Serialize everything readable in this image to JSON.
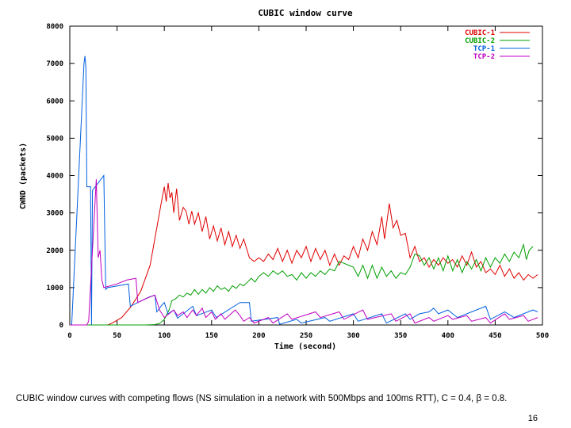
{
  "chart_data": {
    "type": "line",
    "title": "CUBIC window curve",
    "xlabel": "Time (second)",
    "ylabel": "CWND (packets)",
    "xlim": [
      0,
      500
    ],
    "ylim": [
      0,
      8000
    ],
    "x_ticks": [
      0,
      50,
      100,
      150,
      200,
      250,
      300,
      350,
      400,
      450,
      500
    ],
    "y_ticks": [
      0,
      1000,
      2000,
      3000,
      4000,
      5000,
      6000,
      7000,
      8000
    ],
    "grid": false,
    "legend_position": "top-right",
    "series": [
      {
        "name": "CUBIC-1",
        "color": "#e00000",
        "points": [
          [
            0,
            0
          ],
          [
            40,
            0
          ],
          [
            45,
            50
          ],
          [
            55,
            200
          ],
          [
            65,
            500
          ],
          [
            75,
            900
          ],
          [
            85,
            1600
          ],
          [
            92,
            2600
          ],
          [
            97,
            3300
          ],
          [
            100,
            3700
          ],
          [
            102,
            3300
          ],
          [
            104,
            3800
          ],
          [
            106,
            3400
          ],
          [
            108,
            3550
          ],
          [
            110,
            3000
          ],
          [
            113,
            3650
          ],
          [
            116,
            2800
          ],
          [
            120,
            3150
          ],
          [
            123,
            3050
          ],
          [
            126,
            2700
          ],
          [
            129,
            3050
          ],
          [
            132,
            2700
          ],
          [
            136,
            3000
          ],
          [
            140,
            2500
          ],
          [
            144,
            2900
          ],
          [
            148,
            2300
          ],
          [
            152,
            2650
          ],
          [
            156,
            2250
          ],
          [
            160,
            2600
          ],
          [
            164,
            2150
          ],
          [
            168,
            2500
          ],
          [
            172,
            2100
          ],
          [
            176,
            2400
          ],
          [
            180,
            2050
          ],
          [
            184,
            2300
          ],
          [
            190,
            1800
          ],
          [
            195,
            1700
          ],
          [
            200,
            1800
          ],
          [
            205,
            1700
          ],
          [
            210,
            1900
          ],
          [
            215,
            1750
          ],
          [
            220,
            2050
          ],
          [
            225,
            1700
          ],
          [
            230,
            2000
          ],
          [
            235,
            1650
          ],
          [
            240,
            2000
          ],
          [
            245,
            1800
          ],
          [
            250,
            2100
          ],
          [
            255,
            1700
          ],
          [
            260,
            2050
          ],
          [
            265,
            1750
          ],
          [
            270,
            2000
          ],
          [
            275,
            1600
          ],
          [
            280,
            1900
          ],
          [
            285,
            1600
          ],
          [
            290,
            1850
          ],
          [
            295,
            1750
          ],
          [
            300,
            2100
          ],
          [
            305,
            1800
          ],
          [
            310,
            2300
          ],
          [
            315,
            2000
          ],
          [
            320,
            2500
          ],
          [
            325,
            2150
          ],
          [
            330,
            2900
          ],
          [
            333,
            2300
          ],
          [
            338,
            3250
          ],
          [
            342,
            2600
          ],
          [
            346,
            2800
          ],
          [
            350,
            2400
          ],
          [
            355,
            2450
          ],
          [
            360,
            1800
          ],
          [
            365,
            2100
          ],
          [
            370,
            1700
          ],
          [
            375,
            1800
          ],
          [
            380,
            1550
          ],
          [
            385,
            1750
          ],
          [
            390,
            1600
          ],
          [
            395,
            1800
          ],
          [
            400,
            1650
          ],
          [
            405,
            1750
          ],
          [
            410,
            1550
          ],
          [
            415,
            1850
          ],
          [
            420,
            1600
          ],
          [
            425,
            1950
          ],
          [
            430,
            1550
          ],
          [
            435,
            1700
          ],
          [
            440,
            1400
          ],
          [
            445,
            1500
          ],
          [
            450,
            1350
          ],
          [
            455,
            1600
          ],
          [
            460,
            1300
          ],
          [
            465,
            1500
          ],
          [
            470,
            1250
          ],
          [
            475,
            1400
          ],
          [
            480,
            1200
          ],
          [
            485,
            1350
          ],
          [
            490,
            1250
          ],
          [
            495,
            1350
          ]
        ]
      },
      {
        "name": "CUBIC-2",
        "color": "#00a000",
        "points": [
          [
            0,
            0
          ],
          [
            80,
            0
          ],
          [
            90,
            10
          ],
          [
            95,
            40
          ],
          [
            100,
            150
          ],
          [
            105,
            400
          ],
          [
            108,
            650
          ],
          [
            112,
            700
          ],
          [
            116,
            800
          ],
          [
            120,
            750
          ],
          [
            124,
            850
          ],
          [
            128,
            800
          ],
          [
            132,
            950
          ],
          [
            136,
            820
          ],
          [
            140,
            950
          ],
          [
            144,
            850
          ],
          [
            148,
            1000
          ],
          [
            152,
            900
          ],
          [
            156,
            1050
          ],
          [
            160,
            950
          ],
          [
            164,
            1000
          ],
          [
            168,
            900
          ],
          [
            172,
            1050
          ],
          [
            176,
            980
          ],
          [
            180,
            1100
          ],
          [
            184,
            1050
          ],
          [
            188,
            1150
          ],
          [
            192,
            1250
          ],
          [
            196,
            1150
          ],
          [
            200,
            1300
          ],
          [
            205,
            1400
          ],
          [
            210,
            1300
          ],
          [
            215,
            1450
          ],
          [
            220,
            1350
          ],
          [
            225,
            1450
          ],
          [
            230,
            1300
          ],
          [
            235,
            1350
          ],
          [
            240,
            1200
          ],
          [
            245,
            1400
          ],
          [
            250,
            1250
          ],
          [
            255,
            1400
          ],
          [
            260,
            1300
          ],
          [
            265,
            1450
          ],
          [
            270,
            1350
          ],
          [
            275,
            1500
          ],
          [
            280,
            1450
          ],
          [
            285,
            1700
          ],
          [
            290,
            1650
          ],
          [
            295,
            1600
          ],
          [
            300,
            1550
          ],
          [
            305,
            1300
          ],
          [
            310,
            1600
          ],
          [
            315,
            1250
          ],
          [
            320,
            1600
          ],
          [
            325,
            1250
          ],
          [
            330,
            1550
          ],
          [
            335,
            1300
          ],
          [
            340,
            1450
          ],
          [
            345,
            1250
          ],
          [
            350,
            1400
          ],
          [
            355,
            1350
          ],
          [
            360,
            1550
          ],
          [
            365,
            1900
          ],
          [
            370,
            1850
          ],
          [
            375,
            1600
          ],
          [
            380,
            1800
          ],
          [
            385,
            1500
          ],
          [
            390,
            1800
          ],
          [
            395,
            1450
          ],
          [
            400,
            1850
          ],
          [
            405,
            1450
          ],
          [
            410,
            1750
          ],
          [
            415,
            1400
          ],
          [
            420,
            1700
          ],
          [
            425,
            1500
          ],
          [
            430,
            1750
          ],
          [
            435,
            1450
          ],
          [
            440,
            1800
          ],
          [
            445,
            1550
          ],
          [
            450,
            1800
          ],
          [
            455,
            1650
          ],
          [
            460,
            1900
          ],
          [
            465,
            1700
          ],
          [
            470,
            1950
          ],
          [
            475,
            1800
          ],
          [
            480,
            2150
          ],
          [
            483,
            1750
          ],
          [
            486,
            2000
          ],
          [
            490,
            2100
          ]
        ]
      },
      {
        "name": "TCP-1",
        "color": "#0060e0",
        "points": [
          [
            0,
            0
          ],
          [
            2,
            0
          ],
          [
            15,
            7000
          ],
          [
            16,
            7200
          ],
          [
            17,
            6900
          ],
          [
            18,
            3700
          ],
          [
            22,
            3700
          ],
          [
            23,
            0
          ],
          [
            24,
            3600
          ],
          [
            36,
            4000
          ],
          [
            38,
            950
          ],
          [
            40,
            1000
          ],
          [
            62,
            1100
          ],
          [
            64,
            500
          ],
          [
            80,
            700
          ],
          [
            84,
            750
          ],
          [
            90,
            800
          ],
          [
            92,
            350
          ],
          [
            98,
            550
          ],
          [
            100,
            600
          ],
          [
            104,
            300
          ],
          [
            110,
            400
          ],
          [
            114,
            180
          ],
          [
            130,
            500
          ],
          [
            134,
            250
          ],
          [
            150,
            400
          ],
          [
            155,
            200
          ],
          [
            180,
            600
          ],
          [
            190,
            600
          ],
          [
            192,
            100
          ],
          [
            220,
            200
          ],
          [
            222,
            20
          ],
          [
            240,
            150
          ],
          [
            245,
            50
          ],
          [
            270,
            200
          ],
          [
            275,
            100
          ],
          [
            300,
            300
          ],
          [
            305,
            100
          ],
          [
            330,
            300
          ],
          [
            335,
            50
          ],
          [
            355,
            300
          ],
          [
            360,
            150
          ],
          [
            370,
            300
          ],
          [
            380,
            350
          ],
          [
            385,
            450
          ],
          [
            390,
            300
          ],
          [
            400,
            400
          ],
          [
            410,
            200
          ],
          [
            430,
            400
          ],
          [
            440,
            500
          ],
          [
            445,
            150
          ],
          [
            460,
            350
          ],
          [
            470,
            200
          ],
          [
            490,
            400
          ],
          [
            495,
            350
          ]
        ]
      },
      {
        "name": "TCP-2",
        "color": "#c000c0",
        "points": [
          [
            0,
            0
          ],
          [
            18,
            0
          ],
          [
            20,
            100
          ],
          [
            28,
            3900
          ],
          [
            30,
            1800
          ],
          [
            32,
            2000
          ],
          [
            34,
            1200
          ],
          [
            36,
            1000
          ],
          [
            50,
            1100
          ],
          [
            60,
            1200
          ],
          [
            70,
            1250
          ],
          [
            72,
            600
          ],
          [
            80,
            700
          ],
          [
            85,
            750
          ],
          [
            90,
            800
          ],
          [
            95,
            400
          ],
          [
            100,
            200
          ],
          [
            110,
            400
          ],
          [
            114,
            250
          ],
          [
            120,
            350
          ],
          [
            124,
            200
          ],
          [
            130,
            400
          ],
          [
            134,
            250
          ],
          [
            140,
            450
          ],
          [
            144,
            200
          ],
          [
            150,
            350
          ],
          [
            154,
            150
          ],
          [
            160,
            300
          ],
          [
            164,
            150
          ],
          [
            175,
            400
          ],
          [
            180,
            250
          ],
          [
            184,
            100
          ],
          [
            190,
            200
          ],
          [
            195,
            50
          ],
          [
            210,
            200
          ],
          [
            215,
            50
          ],
          [
            230,
            300
          ],
          [
            235,
            150
          ],
          [
            260,
            350
          ],
          [
            265,
            200
          ],
          [
            285,
            350
          ],
          [
            290,
            150
          ],
          [
            310,
            400
          ],
          [
            315,
            150
          ],
          [
            340,
            300
          ],
          [
            345,
            100
          ],
          [
            360,
            300
          ],
          [
            365,
            50
          ],
          [
            380,
            200
          ],
          [
            385,
            100
          ],
          [
            400,
            250
          ],
          [
            405,
            150
          ],
          [
            420,
            250
          ],
          [
            425,
            100
          ],
          [
            440,
            200
          ],
          [
            445,
            50
          ],
          [
            460,
            300
          ],
          [
            465,
            150
          ],
          [
            480,
            250
          ],
          [
            485,
            100
          ],
          [
            495,
            200
          ]
        ]
      }
    ]
  },
  "caption": "CUBIC window curves with competing flows (NS simulation in a network with 500Mbps and 100ms RTT), C = 0.4, β = 0.8.",
  "page_number": "16"
}
